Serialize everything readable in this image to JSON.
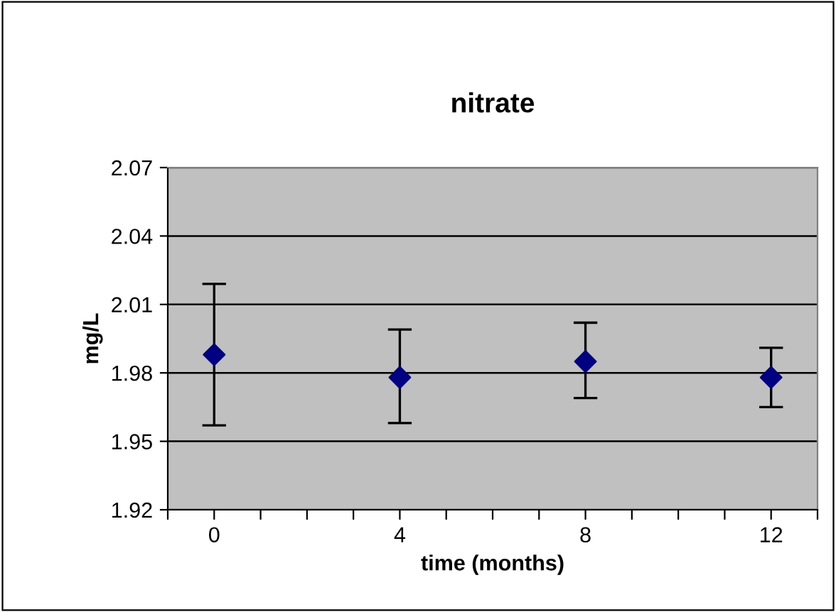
{
  "chart_data": {
    "type": "scatter",
    "title": "nitrate",
    "xlabel": "time (months)",
    "ylabel": "mg/L",
    "x": [
      0,
      4,
      8,
      12
    ],
    "values": [
      1.988,
      1.978,
      1.985,
      1.978
    ],
    "errors": [
      [
        1.957,
        2.019
      ],
      [
        1.958,
        1.999
      ],
      [
        1.969,
        2.002
      ],
      [
        1.965,
        1.991
      ]
    ],
    "color": "#000080",
    "marker": "diamond",
    "xlim": [
      -1,
      13
    ],
    "xticks": [
      {
        "value": -1,
        "label": null
      },
      0,
      {
        "value": 1,
        "label": null
      },
      {
        "value": 2,
        "label": null
      },
      {
        "value": 3,
        "label": null
      },
      4,
      {
        "value": 5,
        "label": null
      },
      {
        "value": 6,
        "label": null
      },
      {
        "value": 7,
        "label": null
      },
      8,
      {
        "value": 9,
        "label": null
      },
      {
        "value": 10,
        "label": null
      },
      {
        "value": 11,
        "label": null
      },
      12,
      {
        "value": 13,
        "label": null
      }
    ],
    "ylim": [
      1.92,
      2.07
    ],
    "yticks": [
      1.92,
      1.95,
      1.98,
      2.01,
      2.04,
      2.07
    ],
    "grid": "y"
  }
}
